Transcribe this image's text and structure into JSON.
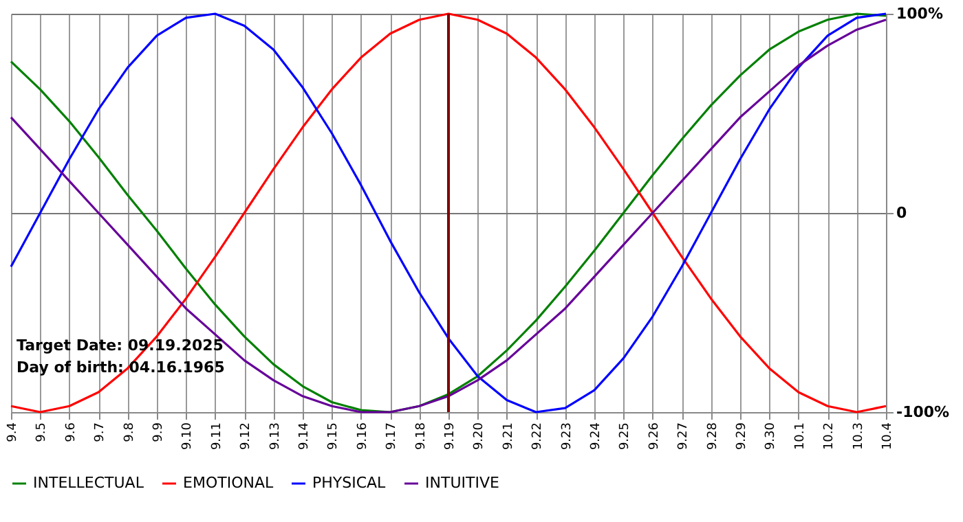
{
  "chart_data": {
    "type": "line",
    "categories": [
      "9.4",
      "9.5",
      "9.6",
      "9.7",
      "9.8",
      "9.9",
      "9.10",
      "9.11",
      "9.12",
      "9.13",
      "9.14",
      "9.15",
      "9.16",
      "9.17",
      "9.18",
      "9.19",
      "9.20",
      "9.21",
      "9.22",
      "9.23",
      "9.24",
      "9.25",
      "9.26",
      "9.27",
      "9.28",
      "9.29",
      "9.30",
      "10.1",
      "10.2",
      "10.3",
      "10.4"
    ],
    "series": [
      {
        "name": "INTELLECTUAL",
        "color": "#008000",
        "values": [
          76,
          62,
          46,
          28,
          9,
          -9,
          -28,
          -46,
          -62,
          -76,
          -87,
          -95,
          -99,
          -100,
          -97,
          -91,
          -82,
          -69,
          -54,
          -37,
          -19,
          0,
          19,
          37,
          54,
          69,
          82,
          91,
          97,
          100,
          99
        ]
      },
      {
        "name": "EMOTIONAL",
        "color": "#ff0000",
        "values": [
          -97,
          -100,
          -97,
          -90,
          -78,
          -62,
          -43,
          -22,
          0,
          22,
          43,
          62,
          78,
          90,
          97,
          100,
          97,
          90,
          78,
          62,
          43,
          22,
          0,
          -22,
          -43,
          -62,
          -78,
          -90,
          -97,
          -100,
          -97
        ]
      },
      {
        "name": "PHYSICAL",
        "color": "#0000ff",
        "values": [
          -27,
          0,
          27,
          52,
          73,
          89,
          98,
          100,
          94,
          82,
          63,
          40,
          14,
          -14,
          -40,
          -63,
          -82,
          -94,
          -100,
          -98,
          -89,
          -73,
          -52,
          -27,
          0,
          27,
          52,
          73,
          89,
          98,
          100
        ]
      },
      {
        "name": "INTUITIVE",
        "color": "#660099",
        "values": [
          48,
          32,
          16,
          0,
          -16,
          -32,
          -48,
          -61,
          -74,
          -84,
          -92,
          -97,
          -100,
          -100,
          -97,
          -92,
          -84,
          -74,
          -61,
          -48,
          -32,
          -16,
          0,
          16,
          32,
          48,
          61,
          74,
          84,
          92,
          97
        ]
      }
    ],
    "ylim": [
      -100,
      100
    ],
    "yticks": [
      {
        "value": -100,
        "label": "-100%"
      },
      0,
      {
        "value": 100,
        "label": "100%"
      }
    ],
    "ref_lines": [
      {
        "axis": "x",
        "value": "9.19",
        "color": "#800000"
      }
    ],
    "annotations": [
      "Target Date: 09.19.2025",
      "Day of birth: 04.16.1965"
    ],
    "grid": true,
    "legend": "bottom",
    "line_style": "solid",
    "marker": "none"
  }
}
